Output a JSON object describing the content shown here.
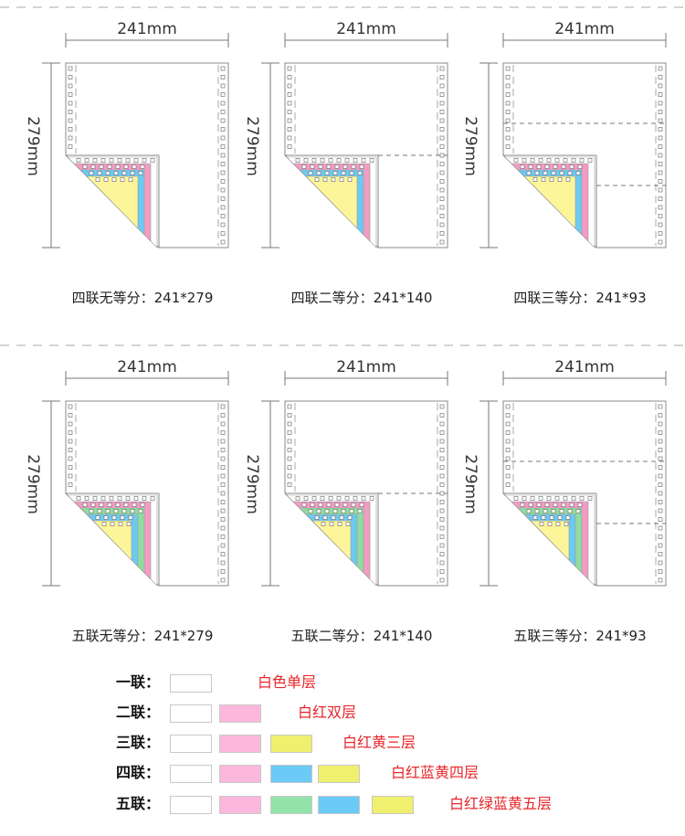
{
  "diagrams": [
    {
      "width_label": "241mm",
      "height_label": "279mm",
      "caption": "四联无等分：241*279",
      "plies": [
        "#ffffff",
        "#f29cc4",
        "#6ccaf2",
        "#fdf59a"
      ],
      "division": "none"
    },
    {
      "width_label": "241mm",
      "height_label": "279mm",
      "caption": "四联二等分：241*140",
      "plies": [
        "#ffffff",
        "#f29cc4",
        "#6ccaf2",
        "#fdf59a"
      ],
      "division": "halves"
    },
    {
      "width_label": "241mm",
      "height_label": "279mm",
      "caption": "四联三等分：241*93",
      "plies": [
        "#ffffff",
        "#f29cc4",
        "#6ccaf2",
        "#fdf59a"
      ],
      "division": "thirds"
    },
    {
      "width_label": "241mm",
      "height_label": "279mm",
      "caption": "五联无等分：241*279",
      "plies": [
        "#ffffff",
        "#f29cc4",
        "#8fdca0",
        "#6ccaf2",
        "#fdf59a"
      ],
      "division": "none"
    },
    {
      "width_label": "241mm",
      "height_label": "279mm",
      "caption": "五联二等分：241*140",
      "plies": [
        "#ffffff",
        "#f29cc4",
        "#8fdca0",
        "#6ccaf2",
        "#fdf59a"
      ],
      "division": "halves"
    },
    {
      "width_label": "241mm",
      "height_label": "279mm",
      "caption": "五联三等分：241*93",
      "plies": [
        "#ffffff",
        "#f29cc4",
        "#8fdca0",
        "#6ccaf2",
        "#fdf59a"
      ],
      "division": "thirds"
    }
  ],
  "legend": [
    {
      "label": "一联：",
      "colors": [
        "#ffffff"
      ],
      "description": "白色单层"
    },
    {
      "label": "二联：",
      "colors": [
        "#ffffff",
        "#fbb8dc"
      ],
      "description": "白红双层"
    },
    {
      "label": "三联：",
      "colors": [
        "#ffffff",
        "#fbb8dc",
        "#eef06e"
      ],
      "description": "白红黄三层"
    },
    {
      "label": "四联：",
      "colors": [
        "#ffffff",
        "#fbb8dc",
        "#6ccaf6",
        "#eef06e"
      ],
      "description": "白红蓝黄四层"
    },
    {
      "label": "五联：",
      "colors": [
        "#ffffff",
        "#fbb8dc",
        "#93e3ab",
        "#6ccaf6",
        "#eef06e"
      ],
      "description": "白红绿蓝黄五层"
    }
  ]
}
